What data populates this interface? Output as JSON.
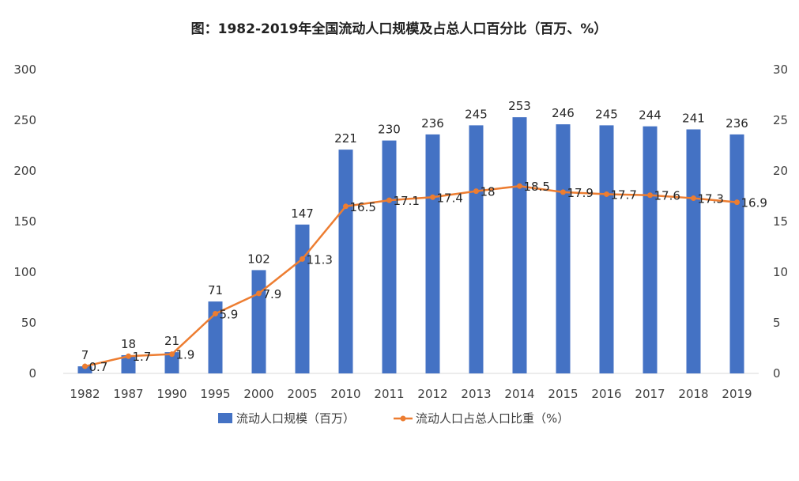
{
  "chart_data": {
    "type": "bar+line",
    "title": "图：1982-2019年全国流动人口规模及占总人口百分比（百万、%）",
    "categories": [
      "1982",
      "1987",
      "1990",
      "1995",
      "2000",
      "2005",
      "2010",
      "2011",
      "2012",
      "2013",
      "2014",
      "2015",
      "2016",
      "2017",
      "2018",
      "2019"
    ],
    "series": [
      {
        "name": "流动人口规模（百万）",
        "type": "bar",
        "axis": "left",
        "color": "#4472C4",
        "values": [
          7,
          18,
          21,
          71,
          102,
          147,
          221,
          230,
          236,
          245,
          253,
          246,
          245,
          244,
          241,
          236
        ]
      },
      {
        "name": "流动人口占总人口比重（%）",
        "type": "line",
        "axis": "right",
        "color": "#ED7D31",
        "values": [
          0.7,
          1.7,
          1.9,
          5.9,
          7.9,
          11.3,
          16.5,
          17.1,
          17.4,
          18,
          18.5,
          17.9,
          17.7,
          17.6,
          17.3,
          16.9
        ]
      }
    ],
    "y_left": {
      "min": 0,
      "max": 300,
      "ticks": [
        "0",
        "50",
        "100",
        "150",
        "200",
        "250",
        "300"
      ]
    },
    "y_right": {
      "min": 0,
      "max": 30,
      "ticks": [
        "0",
        "5",
        "10",
        "15",
        "20",
        "25",
        "30"
      ]
    },
    "legend_position": "bottom",
    "grid": false
  }
}
